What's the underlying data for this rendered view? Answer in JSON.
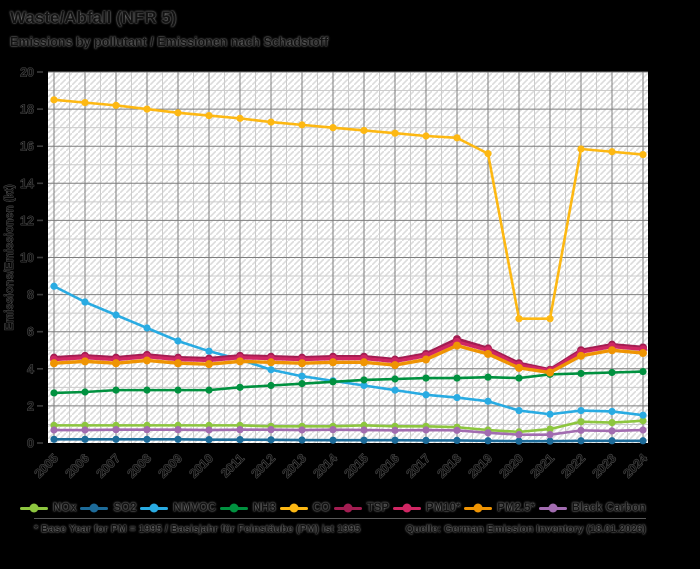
{
  "header": {
    "title": "Waste/Abfall (NFR 5)",
    "subtitle": "Emissions by pollutant / Emissionen nach Schadstoff"
  },
  "footer": {
    "note": "* Base Year for PM = 1995 / Basisjahr für Feinstäube (PM) ist 1995",
    "source": "Quelle: German Emission Inventory (18.01.2026)"
  },
  "chart_data": {
    "type": "line",
    "title": "Waste/Abfall (NFR 5)",
    "subtitle": "Emissions by pollutant / Emissionen nach Schadstoff",
    "xlabel": "",
    "ylabel": "Emissions/Emissionen (kt)",
    "ylim": [
      0,
      20
    ],
    "y_tick_step": 2,
    "grid": "major and minor gridlines on hatched white plot background",
    "legend_position": "bottom",
    "x": [
      2005,
      2006,
      2007,
      2008,
      2009,
      2010,
      2011,
      2012,
      2013,
      2014,
      2015,
      2016,
      2017,
      2018,
      2019,
      2020,
      2021,
      2022,
      2023,
      2024
    ],
    "series": [
      {
        "name": "NOx",
        "color": "#8dc63f",
        "values": [
          0.95,
          0.95,
          0.95,
          0.95,
          0.95,
          0.95,
          0.95,
          0.9,
          0.9,
          0.9,
          0.95,
          0.9,
          0.9,
          0.85,
          0.7,
          0.6,
          0.75,
          1.15,
          1.1,
          1.2
        ]
      },
      {
        "name": "SO2",
        "color": "#1d6b99",
        "values": [
          0.2,
          0.2,
          0.2,
          0.2,
          0.2,
          0.18,
          0.18,
          0.17,
          0.16,
          0.15,
          0.15,
          0.15,
          0.14,
          0.14,
          0.12,
          0.1,
          0.1,
          0.12,
          0.12,
          0.12
        ]
      },
      {
        "name": "NMVOC",
        "color": "#29abe2",
        "values": [
          8.45,
          7.6,
          6.9,
          6.2,
          5.5,
          4.95,
          4.5,
          3.95,
          3.6,
          3.35,
          3.1,
          2.85,
          2.6,
          2.45,
          2.25,
          1.75,
          1.55,
          1.75,
          1.7,
          1.5
        ]
      },
      {
        "name": "NH3",
        "color": "#00913f",
        "values": [
          2.7,
          2.75,
          2.85,
          2.85,
          2.85,
          2.85,
          3.0,
          3.1,
          3.2,
          3.3,
          3.4,
          3.45,
          3.5,
          3.5,
          3.55,
          3.5,
          3.7,
          3.75,
          3.8,
          3.85
        ]
      },
      {
        "name": "CO",
        "color": "#fdb813",
        "values": [
          18.5,
          18.35,
          18.2,
          18.0,
          17.8,
          17.65,
          17.5,
          17.3,
          17.15,
          17.0,
          16.85,
          16.7,
          16.55,
          16.45,
          15.6,
          6.7,
          6.7,
          15.85,
          15.7,
          15.55
        ]
      },
      {
        "name": "TSP",
        "color": "#a21d51",
        "values": [
          4.6,
          4.7,
          4.6,
          4.75,
          4.6,
          4.55,
          4.7,
          4.65,
          4.6,
          4.65,
          4.65,
          4.5,
          4.8,
          5.6,
          5.1,
          4.3,
          3.95,
          5.0,
          5.3,
          5.15
        ]
      },
      {
        "name": "PM10*",
        "color": "#d02663",
        "values": [
          4.5,
          4.6,
          4.5,
          4.65,
          4.5,
          4.45,
          4.6,
          4.55,
          4.5,
          4.55,
          4.55,
          4.4,
          4.7,
          5.45,
          5.0,
          4.2,
          3.9,
          4.9,
          5.2,
          5.05
        ]
      },
      {
        "name": "PM2.5*",
        "color": "#ef9403",
        "values": [
          4.3,
          4.4,
          4.3,
          4.45,
          4.3,
          4.25,
          4.4,
          4.35,
          4.3,
          4.35,
          4.35,
          4.2,
          4.5,
          5.25,
          4.8,
          4.05,
          3.8,
          4.7,
          5.0,
          4.85
        ]
      },
      {
        "name": "Black Carbon",
        "color": "#a26cb0",
        "values": [
          0.7,
          0.7,
          0.72,
          0.72,
          0.72,
          0.7,
          0.72,
          0.72,
          0.7,
          0.72,
          0.7,
          0.68,
          0.7,
          0.68,
          0.55,
          0.45,
          0.45,
          0.68,
          0.65,
          0.7
        ]
      }
    ]
  }
}
